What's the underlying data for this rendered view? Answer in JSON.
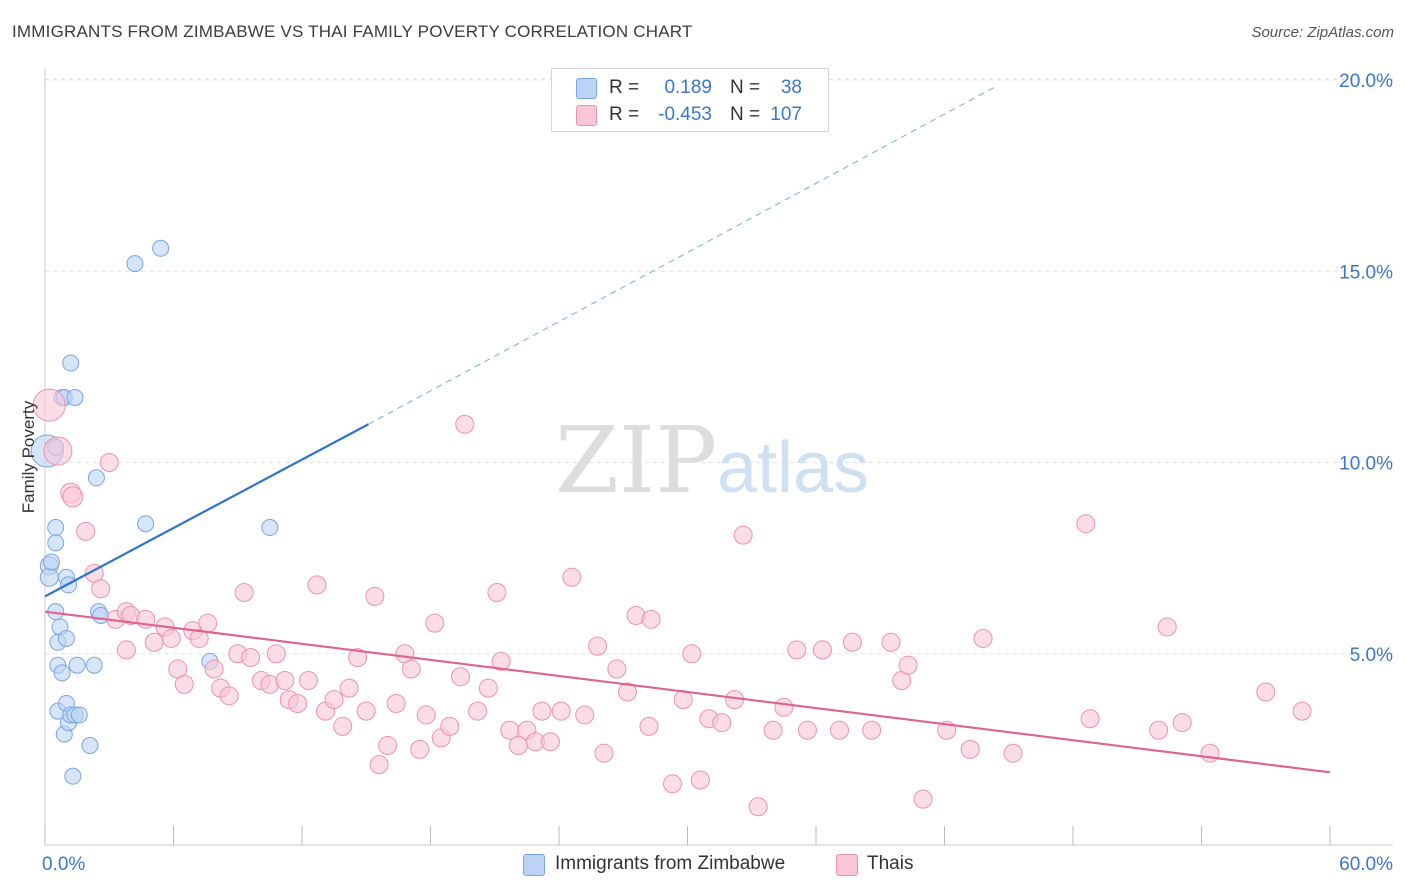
{
  "title": "IMMIGRANTS FROM ZIMBABWE VS THAI FAMILY POVERTY CORRELATION CHART",
  "source": "Source: ZipAtlas.com",
  "watermark": {
    "zip": "ZIP",
    "atlas": "atlas"
  },
  "legend": {
    "r_label": "R =",
    "n_label": "N =",
    "rows": [
      {
        "r": "0.189",
        "n": "38",
        "fill": "#bcd3f5",
        "stroke": "#7aa5e3"
      },
      {
        "r": "-0.453",
        "n": "107",
        "fill": "#f8c6d6",
        "stroke": "#ec92b0"
      }
    ]
  },
  "chart_data": {
    "type": "scatter",
    "title": "IMMIGRANTS FROM ZIMBABWE VS THAI FAMILY POVERTY CORRELATION CHART",
    "xlabel": "",
    "ylabel": "Family Poverty",
    "xlim": [
      0,
      60
    ],
    "ylim": [
      0,
      20.8
    ],
    "x_tick_labels": [
      "0.0%",
      "60.0%"
    ],
    "y_ticks": [
      5,
      10,
      15,
      20
    ],
    "y_tick_labels": [
      "5.0%",
      "10.0%",
      "15.0%",
      "20.0%"
    ],
    "grid": true,
    "legend_position": "top-center",
    "series": [
      {
        "name": "Immigrants from Zimbabwe",
        "color": "#7aa5e3",
        "fill": "#bcd3f5",
        "trend_color": "#2f74cf",
        "trend": {
          "x0": 0,
          "y0": 6.5,
          "x1": 15.1,
          "y1": 11.0,
          "dash_to_x": 44.3,
          "dash_to_y": 19.8
        },
        "points": [
          [
            0.1,
            10.3,
            16
          ],
          [
            0.2,
            7.3,
            9
          ],
          [
            0.2,
            7.0,
            9
          ],
          [
            0.3,
            7.4,
            8
          ],
          [
            0.5,
            10.4,
            8
          ],
          [
            0.5,
            8.3,
            8
          ],
          [
            0.5,
            7.9,
            8
          ],
          [
            0.5,
            6.1,
            8
          ],
          [
            0.6,
            5.3,
            8
          ],
          [
            0.6,
            4.7,
            8
          ],
          [
            0.6,
            3.5,
            8
          ],
          [
            0.7,
            5.7,
            8
          ],
          [
            0.8,
            11.7,
            8
          ],
          [
            0.8,
            4.5,
            8
          ],
          [
            0.9,
            2.9,
            8
          ],
          [
            0.9,
            11.7,
            8
          ],
          [
            1.0,
            5.4,
            8
          ],
          [
            1.0,
            3.7,
            8
          ],
          [
            1.0,
            7.0,
            8
          ],
          [
            1.1,
            6.8,
            8
          ],
          [
            1.1,
            3.2,
            8
          ],
          [
            1.2,
            12.6,
            8
          ],
          [
            1.2,
            3.4,
            8
          ],
          [
            1.3,
            1.8,
            8
          ],
          [
            1.4,
            11.7,
            8
          ],
          [
            1.4,
            3.4,
            8
          ],
          [
            1.5,
            4.7,
            8
          ],
          [
            1.6,
            3.4,
            8
          ],
          [
            2.1,
            2.6,
            8
          ],
          [
            2.3,
            4.7,
            8
          ],
          [
            2.4,
            9.6,
            8
          ],
          [
            2.5,
            6.1,
            8
          ],
          [
            2.6,
            6.0,
            8
          ],
          [
            4.2,
            15.2,
            8
          ],
          [
            4.7,
            8.4,
            8
          ],
          [
            5.4,
            15.6,
            8
          ],
          [
            7.7,
            4.8,
            8
          ],
          [
            10.5,
            8.3,
            8
          ]
        ]
      },
      {
        "name": "Thais",
        "color": "#ec92b0",
        "fill": "#f8c6d6",
        "trend_color": "#e0628e",
        "trend": {
          "x0": 0,
          "y0": 6.1,
          "x1": 60.0,
          "y1": 1.9
        },
        "points": [
          [
            0.2,
            11.5,
            16
          ],
          [
            0.6,
            10.3,
            14
          ],
          [
            1.2,
            9.2,
            10
          ],
          [
            1.3,
            9.1,
            10
          ],
          [
            1.9,
            8.2,
            9
          ],
          [
            2.3,
            7.1,
            9
          ],
          [
            2.6,
            6.7,
            9
          ],
          [
            3.0,
            10.0,
            9
          ],
          [
            3.3,
            5.9,
            9
          ],
          [
            3.8,
            5.1,
            9
          ],
          [
            3.8,
            6.1,
            9
          ],
          [
            4.0,
            6.0,
            9
          ],
          [
            4.7,
            5.9,
            9
          ],
          [
            5.1,
            5.3,
            9
          ],
          [
            5.6,
            5.7,
            9
          ],
          [
            5.9,
            5.4,
            9
          ],
          [
            6.2,
            4.6,
            9
          ],
          [
            6.5,
            4.2,
            9
          ],
          [
            6.9,
            5.6,
            9
          ],
          [
            7.2,
            5.4,
            9
          ],
          [
            7.6,
            5.8,
            9
          ],
          [
            7.9,
            4.6,
            9
          ],
          [
            8.2,
            4.1,
            9
          ],
          [
            8.6,
            3.9,
            9
          ],
          [
            9.0,
            5.0,
            9
          ],
          [
            9.3,
            6.6,
            9
          ],
          [
            9.6,
            4.9,
            9
          ],
          [
            10.1,
            4.3,
            9
          ],
          [
            10.5,
            4.2,
            9
          ],
          [
            10.8,
            5.0,
            9
          ],
          [
            11.2,
            4.3,
            9
          ],
          [
            11.4,
            3.8,
            9
          ],
          [
            11.8,
            3.7,
            9
          ],
          [
            12.3,
            4.3,
            9
          ],
          [
            12.7,
            6.8,
            9
          ],
          [
            13.1,
            3.5,
            9
          ],
          [
            13.5,
            3.8,
            9
          ],
          [
            13.9,
            3.1,
            9
          ],
          [
            14.2,
            4.1,
            9
          ],
          [
            14.6,
            4.9,
            9
          ],
          [
            15.0,
            3.5,
            9
          ],
          [
            15.4,
            6.5,
            9
          ],
          [
            15.6,
            2.1,
            9
          ],
          [
            16.0,
            2.6,
            9
          ],
          [
            16.4,
            3.7,
            9
          ],
          [
            16.8,
            5.0,
            9
          ],
          [
            17.1,
            4.6,
            9
          ],
          [
            17.5,
            2.5,
            9
          ],
          [
            17.8,
            3.4,
            9
          ],
          [
            18.2,
            5.8,
            9
          ],
          [
            18.5,
            2.8,
            9
          ],
          [
            18.9,
            3.1,
            9
          ],
          [
            19.4,
            4.4,
            9
          ],
          [
            19.6,
            11.0,
            9
          ],
          [
            20.2,
            3.5,
            9
          ],
          [
            20.7,
            4.1,
            9
          ],
          [
            21.1,
            6.6,
            9
          ],
          [
            21.3,
            4.8,
            9
          ],
          [
            21.7,
            3.0,
            9
          ],
          [
            22.1,
            2.6,
            9
          ],
          [
            22.5,
            3.0,
            9
          ],
          [
            22.9,
            2.7,
            9
          ],
          [
            23.2,
            3.5,
            9
          ],
          [
            23.6,
            2.7,
            9
          ],
          [
            24.1,
            3.5,
            9
          ],
          [
            24.6,
            7.0,
            9
          ],
          [
            25.2,
            3.4,
            9
          ],
          [
            25.8,
            5.2,
            9
          ],
          [
            26.1,
            2.4,
            9
          ],
          [
            26.7,
            4.6,
            9
          ],
          [
            27.2,
            4.0,
            9
          ],
          [
            27.6,
            6.0,
            9
          ],
          [
            28.2,
            3.1,
            9
          ],
          [
            28.3,
            5.9,
            9
          ],
          [
            29.3,
            1.6,
            9
          ],
          [
            29.8,
            3.8,
            9
          ],
          [
            30.2,
            5.0,
            9
          ],
          [
            30.6,
            1.7,
            9
          ],
          [
            31.0,
            3.3,
            9
          ],
          [
            31.6,
            3.2,
            9
          ],
          [
            32.2,
            3.8,
            9
          ],
          [
            32.6,
            8.1,
            9
          ],
          [
            33.3,
            1.0,
            9
          ],
          [
            34.0,
            3.0,
            9
          ],
          [
            34.5,
            3.6,
            9
          ],
          [
            35.1,
            5.1,
            9
          ],
          [
            35.6,
            3.0,
            9
          ],
          [
            36.3,
            5.1,
            9
          ],
          [
            37.1,
            3.0,
            9
          ],
          [
            37.7,
            5.3,
            9
          ],
          [
            38.6,
            3.0,
            9
          ],
          [
            39.5,
            5.3,
            9
          ],
          [
            40.0,
            4.3,
            9
          ],
          [
            40.3,
            4.7,
            9
          ],
          [
            41.0,
            1.2,
            9
          ],
          [
            42.1,
            3.0,
            9
          ],
          [
            43.2,
            2.5,
            9
          ],
          [
            43.8,
            5.4,
            9
          ],
          [
            45.2,
            2.4,
            9
          ],
          [
            48.6,
            8.4,
            9
          ],
          [
            48.8,
            3.3,
            9
          ],
          [
            52.0,
            3.0,
            9
          ],
          [
            52.4,
            5.7,
            9
          ],
          [
            53.1,
            3.2,
            9
          ],
          [
            54.4,
            2.4,
            9
          ],
          [
            57.0,
            4.0,
            9
          ],
          [
            58.7,
            3.5,
            9
          ]
        ]
      }
    ]
  }
}
